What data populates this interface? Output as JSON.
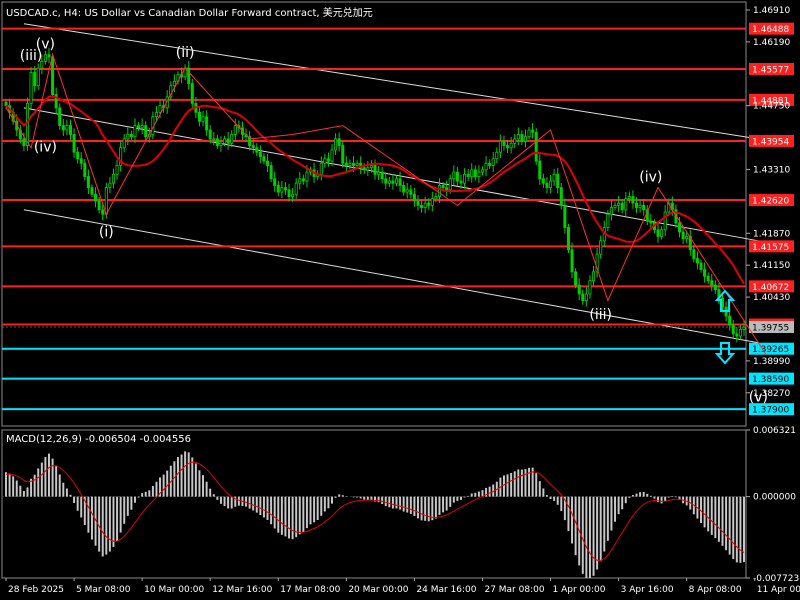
{
  "chart_data": {
    "type": "candlestick",
    "title": "USDCAD.c, H4:  US Dollar vs Canadian Dollar Forward contract, 美元兑加元",
    "x_ticks": [
      "28 Feb 2025",
      "5 Mar 08:00",
      "10 Mar 00:00",
      "12 Mar 16:00",
      "17 Mar 08:00",
      "20 Mar 00:00",
      "24 Mar 16:00",
      "27 Mar 08:00",
      "1 Apr 00:00",
      "3 Apr 16:00",
      "8 Apr 08:00",
      "11 Apr 00:00"
    ],
    "y_ticks": [
      "1.46910",
      "1.46190",
      "1.44750",
      "1.43310",
      "1.41870",
      "1.41150",
      "1.40430",
      "1.38990",
      "1.38270"
    ],
    "ylim": [
      1.3752,
      1.4709
    ],
    "price_levels": [
      {
        "label": "1.46488",
        "value": 1.46488,
        "color": "#ff2020"
      },
      {
        "label": "1.45577",
        "value": 1.45577,
        "color": "#ff2020"
      },
      {
        "label": "1.44881",
        "value": 1.44881,
        "color": "#ff2020"
      },
      {
        "label": "1.43954",
        "value": 1.43954,
        "color": "#ff2020"
      },
      {
        "label": "1.42620",
        "value": 1.4262,
        "color": "#ff2020"
      },
      {
        "label": "1.41575",
        "value": 1.41575,
        "color": "#ff2020"
      },
      {
        "label": "1.40672",
        "value": 1.40672,
        "color": "#ff2020"
      },
      {
        "label": "1.39810",
        "value": 1.3981,
        "color": "#ff2020"
      },
      {
        "label": "1.39265",
        "value": 1.39265,
        "color": "#00e5ff"
      },
      {
        "label": "1.38590",
        "value": 1.3859,
        "color": "#00e5ff"
      },
      {
        "label": "1.37900",
        "value": 1.379,
        "color": "#00e5ff"
      }
    ],
    "current_price": {
      "label": "1.39755",
      "value": 1.39755
    },
    "wave_labels": [
      {
        "text": "(iii)",
        "x": 7,
        "y": 1.4578
      },
      {
        "text": "(v)",
        "x": 11,
        "y": 1.4604
      },
      {
        "text": "(iv)",
        "x": 11,
        "y": 1.4372
      },
      {
        "text": "(i)",
        "x": 28,
        "y": 1.418
      },
      {
        "text": "(ii)",
        "x": 50,
        "y": 1.4585
      },
      {
        "text": "(iv)",
        "x": 180,
        "y": 1.4304
      },
      {
        "text": "(iii)",
        "x": 166,
        "y": 1.3994
      },
      {
        "text": "(v)",
        "x": 210,
        "y": 1.3807
      }
    ],
    "wave_path": [
      [
        0,
        1.447
      ],
      [
        7,
        1.438
      ],
      [
        13,
        1.459
      ],
      [
        28,
        1.423
      ],
      [
        50,
        1.456
      ],
      [
        68,
        1.44
      ],
      [
        80,
        1.441
      ],
      [
        94,
        1.443
      ],
      [
        110,
        1.434
      ],
      [
        126,
        1.425
      ],
      [
        152,
        1.442
      ],
      [
        168,
        1.4035
      ],
      [
        182,
        1.429
      ],
      [
        212,
        1.3915
      ]
    ],
    "channel": {
      "upper": [
        [
          5,
          1.466
        ],
        [
          210,
          1.44
        ]
      ],
      "middle": [
        [
          5,
          1.447
        ],
        [
          210,
          1.417
        ]
      ],
      "lower": [
        [
          5,
          1.424
        ],
        [
          210,
          1.394
        ]
      ]
    },
    "close": [
      1.4475,
      1.446,
      1.444,
      1.442,
      1.44,
      1.4385,
      1.448,
      1.455,
      1.452,
      1.456,
      1.4575,
      1.459,
      1.4585,
      1.45,
      1.447,
      1.443,
      1.442,
      1.443,
      1.441,
      1.437,
      1.4355,
      1.4345,
      1.4315,
      1.429,
      1.4275,
      1.426,
      1.424,
      1.423,
      1.429,
      1.43,
      1.432,
      1.434,
      1.438,
      1.44,
      1.441,
      1.4405,
      1.443,
      1.4425,
      1.443,
      1.4405,
      1.441,
      1.445,
      1.446,
      1.4475,
      1.447,
      1.4495,
      1.452,
      1.453,
      1.4545,
      1.454,
      1.456,
      1.4525,
      1.448,
      1.446,
      1.444,
      1.445,
      1.442,
      1.44,
      1.44,
      1.4385,
      1.439,
      1.44,
      1.439,
      1.441,
      1.443,
      1.4425,
      1.441,
      1.4405,
      1.4385,
      1.438,
      1.437,
      1.436,
      1.435,
      1.434,
      1.431,
      1.4295,
      1.428,
      1.429,
      1.4285,
      1.427,
      1.4275,
      1.43,
      1.431,
      1.4305,
      1.4325,
      1.433,
      1.4315,
      1.432,
      1.4345,
      1.4355,
      1.435,
      1.4375,
      1.44,
      1.4385,
      1.4345,
      1.434,
      1.4345,
      1.434,
      1.4345,
      1.4335,
      1.433,
      1.4335,
      1.434,
      1.432,
      1.4325,
      1.431,
      1.43,
      1.4305,
      1.43,
      1.431,
      1.4295,
      1.428,
      1.4285,
      1.4275,
      1.426,
      1.425,
      1.4245,
      1.4255,
      1.425,
      1.4265,
      1.427,
      1.4295,
      1.429,
      1.4285,
      1.431,
      1.4325,
      1.4305,
      1.43,
      1.432,
      1.4315,
      1.433,
      1.4315,
      1.4325,
      1.433,
      1.4345,
      1.434,
      1.4355,
      1.437,
      1.4395,
      1.4385,
      1.438,
      1.439,
      1.44,
      1.441,
      1.4395,
      1.4405,
      1.442,
      1.4415,
      1.435,
      1.431,
      1.43,
      1.429,
      1.4305,
      1.432,
      1.429,
      1.425,
      1.42,
      1.415,
      1.41,
      1.407,
      1.405,
      1.4035,
      1.405,
      1.408,
      1.41,
      1.414,
      1.417,
      1.42,
      1.423,
      1.4245,
      1.425,
      1.4255,
      1.424,
      1.4265,
      1.427,
      1.4255,
      1.4245,
      1.425,
      1.424,
      1.4215,
      1.421,
      1.4195,
      1.418,
      1.4195,
      1.4235,
      1.4255,
      1.424,
      1.421,
      1.419,
      1.4175,
      1.418,
      1.415,
      1.413,
      1.412,
      1.4105,
      1.409,
      1.408,
      1.407,
      1.406,
      1.404,
      1.402,
      1.4,
      1.398,
      1.396,
      1.3955,
      1.397,
      1.3975
    ],
    "macd": {
      "label": "MACD(12,26,9) -0.006504 -0.004556",
      "ylim": [
        -0.007723,
        0.006321
      ],
      "y_ticks": [
        "0.006321",
        "0.000000",
        "-0.007723"
      ]
    }
  }
}
